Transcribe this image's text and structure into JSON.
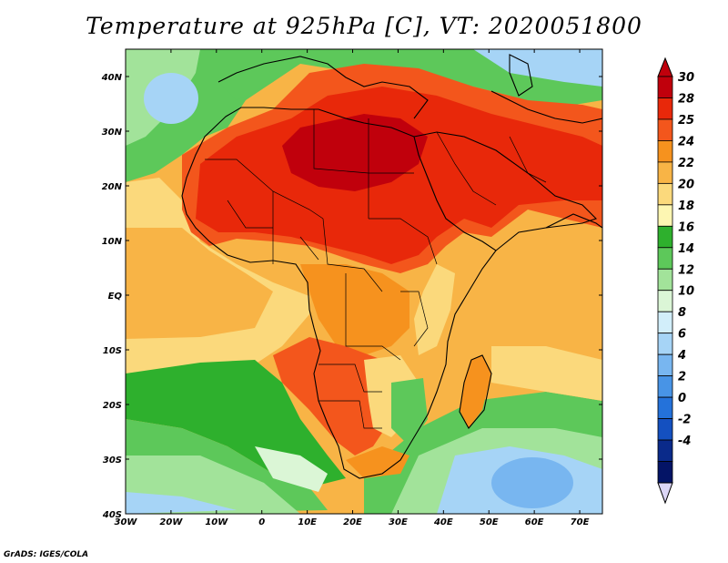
{
  "title": "Temperature at 925hPa [C], VT: 2020051800",
  "credit": "GrADS: IGES/COLA",
  "lon_labels": [
    "30W",
    "20W",
    "10W",
    "0",
    "10E",
    "20E",
    "30E",
    "40E",
    "50E",
    "60E",
    "70E"
  ],
  "lat_labels": [
    "40N",
    "30N",
    "20N",
    "10N",
    "EQ",
    "10S",
    "20S",
    "30S",
    "40S"
  ],
  "colorbar": {
    "levels": [
      "30",
      "28",
      "25",
      "24",
      "22",
      "20",
      "18",
      "16",
      "14",
      "12",
      "10",
      "8",
      "6",
      "4",
      "2",
      "0",
      "-2",
      "-4"
    ],
    "colors": [
      "#c0000c",
      "#e8280a",
      "#f3561c",
      "#f6921e",
      "#f8b446",
      "#fbd97c",
      "#fdf6b2",
      "#2eb02d",
      "#5dc85a",
      "#a2e39a",
      "#dbf6d6",
      "#d2eefa",
      "#a6d4f6",
      "#78b6f0",
      "#4894e6",
      "#2472da",
      "#1450c0",
      "#0a2a8a",
      "#041466"
    ],
    "top_arrow_color": "#c0000c",
    "bottom_arrow_color": "#dcd6f6"
  }
}
